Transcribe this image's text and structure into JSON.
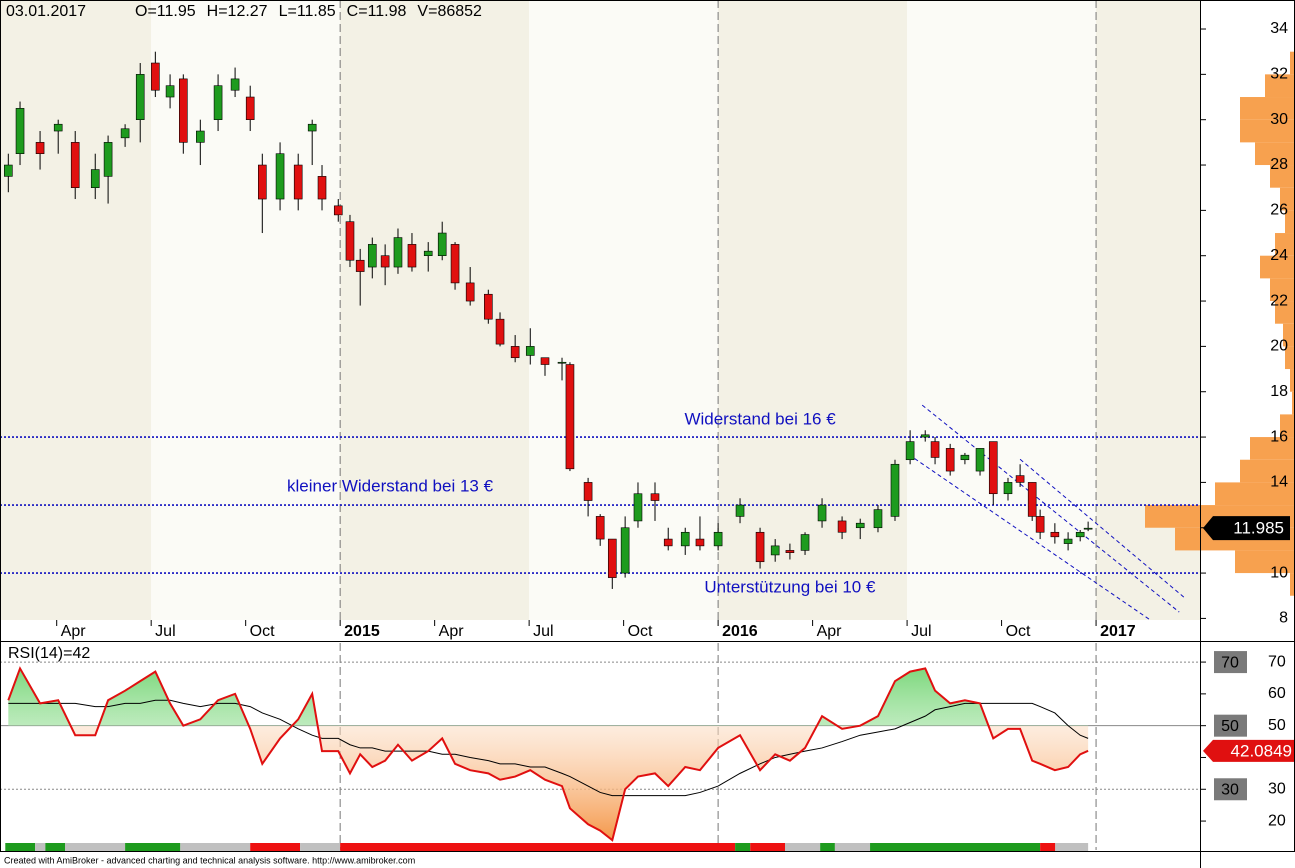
{
  "chart_data": {
    "type": "candlestick",
    "header": {
      "date": "03.01.2017",
      "ohlcv": [
        "O=11.95",
        "H=12.27",
        "L=11.85",
        "C=11.98",
        "V=86852"
      ]
    },
    "footer": "Created with AmiBroker - advanced charting and technical analysis software. http://www.amibroker.com",
    "xlim": [
      2014.1,
      2017.275
    ],
    "xticks": [
      {
        "value": 2014.25,
        "label": "Apr"
      },
      {
        "value": 2014.5,
        "label": "Jul"
      },
      {
        "value": 2014.75,
        "label": "Oct"
      },
      2015,
      {
        "value": 2015.25,
        "label": "Apr"
      },
      {
        "value": 2015.5,
        "label": "Jul"
      },
      {
        "value": 2015.75,
        "label": "Oct"
      },
      2016,
      {
        "value": 2016.25,
        "label": "Apr"
      },
      {
        "value": 2016.5,
        "label": "Jul"
      },
      {
        "value": 2016.75,
        "label": "Oct"
      },
      2017
    ],
    "ylim": [
      7.93,
      35.28
    ],
    "yticks": [
      8,
      10,
      12,
      14,
      16,
      18,
      20,
      22,
      24,
      26,
      28,
      30,
      32,
      34
    ],
    "up_color": "#1e9b1e",
    "down_color": "#e01010",
    "x": [
      2014.122,
      2014.153,
      2014.206,
      2014.254,
      2014.299,
      2014.352,
      2014.386,
      2014.431,
      2014.471,
      2014.511,
      2014.55,
      2014.585,
      2014.63,
      2014.677,
      2014.722,
      2014.762,
      2014.794,
      2014.841,
      2014.889,
      2014.926,
      2014.952,
      2014.995,
      2015.026,
      2015.053,
      2015.085,
      2015.119,
      2015.153,
      2015.19,
      2015.233,
      2015.27,
      2015.304,
      2015.344,
      2015.392,
      2015.423,
      2015.463,
      2015.503,
      2015.542,
      2015.587,
      2015.608,
      2015.656,
      2015.688,
      2015.72,
      2015.754,
      2015.788,
      2015.833,
      2015.868,
      2015.913,
      2015.952,
      2016.0,
      2016.058,
      2016.111,
      2016.151,
      2016.19,
      2016.23,
      2016.275,
      2016.328,
      2016.376,
      2016.423,
      2016.468,
      2016.508,
      2016.548,
      2016.574,
      2016.614,
      2016.653,
      2016.693,
      2016.728,
      2016.767,
      2016.799,
      2016.831,
      2016.852,
      2016.891,
      2016.926,
      2016.958,
      2016.979
    ],
    "open": [
      27.5,
      28.5,
      29,
      29.5,
      29,
      27,
      27.5,
      29.2,
      30,
      32.5,
      31,
      31.8,
      29,
      30,
      31.3,
      31,
      28,
      26.5,
      28,
      29.5,
      27.5,
      26.2,
      25.5,
      23.8,
      23.5,
      24,
      23.5,
      24.5,
      24,
      24,
      24.5,
      22.8,
      22.3,
      21.2,
      20,
      19.6,
      19.5,
      19.3,
      19.2,
      14,
      12.5,
      11.5,
      10,
      12.3,
      13.5,
      11.5,
      11.2,
      11.5,
      11.2,
      12.5,
      11.8,
      10.8,
      11,
      11,
      12.3,
      12.3,
      12,
      12,
      12.5,
      15,
      16,
      15.8,
      15.5,
      15,
      14.5,
      15.8,
      13.5,
      14.3,
      14,
      12.5,
      11.8,
      11.3,
      11.6,
      11.95
    ],
    "high": [
      28.5,
      30.8,
      29.5,
      30,
      29.5,
      28.5,
      29.3,
      29.8,
      32.5,
      33,
      32,
      32,
      30,
      32,
      32.3,
      31.5,
      28.5,
      29,
      28.5,
      30,
      28,
      26.5,
      25.8,
      24.3,
      24.8,
      24.5,
      25.2,
      25,
      24.6,
      25.5,
      24.6,
      23.5,
      22.5,
      21.5,
      20.5,
      20.8,
      19.5,
      19.5,
      19.3,
      14.2,
      12.6,
      11.5,
      12.5,
      14,
      14,
      12,
      12,
      12.5,
      12.2,
      13.3,
      12,
      11.5,
      11.3,
      11.8,
      13.3,
      12.5,
      12.4,
      13,
      15,
      16.3,
      16.3,
      16,
      15.7,
      15.3,
      15.5,
      15.8,
      14.2,
      14.8,
      14,
      12.8,
      12.2,
      11.8,
      11.9,
      12.27
    ],
    "low": [
      26.8,
      28,
      27.8,
      28.5,
      26.5,
      26.5,
      26.3,
      28.8,
      29,
      31,
      30.5,
      28.5,
      28,
      29.5,
      31,
      29.5,
      25,
      26,
      26,
      28,
      26,
      25.5,
      23.5,
      21.8,
      23,
      22.7,
      23.2,
      23.3,
      23.3,
      23.8,
      22.5,
      21.8,
      21,
      20,
      19.3,
      19.2,
      18.7,
      18.5,
      14.5,
      12.5,
      11.2,
      9.3,
      9.8,
      12,
      12.3,
      11,
      10.8,
      11,
      11,
      12.2,
      10.2,
      10.5,
      10.6,
      10.8,
      12,
      11.5,
      11.5,
      11.8,
      12.3,
      14.8,
      15.8,
      14.8,
      14.3,
      14.8,
      14.3,
      13,
      13.2,
      13.8,
      12.3,
      11.5,
      11.3,
      11,
      11.4,
      11.85
    ],
    "close": [
      28,
      30.5,
      28.5,
      29.8,
      27,
      27.8,
      29,
      29.6,
      32,
      31.3,
      31.5,
      29,
      29.5,
      31.5,
      31.8,
      30,
      26.5,
      28.5,
      26.5,
      29.8,
      26.5,
      25.8,
      23.8,
      23.3,
      24.5,
      23.5,
      24.8,
      23.5,
      24.2,
      25,
      22.8,
      22,
      21.2,
      20.1,
      19.5,
      20,
      19.2,
      19.3,
      14.6,
      13.2,
      11.5,
      9.8,
      12,
      13.5,
      13.2,
      11.2,
      11.8,
      11.2,
      11.8,
      13,
      10.5,
      11.2,
      10.9,
      11.7,
      13,
      11.8,
      12.2,
      12.8,
      14.8,
      15.8,
      16.1,
      15.1,
      14.5,
      15.2,
      15.5,
      13.5,
      14,
      14,
      12.5,
      11.8,
      11.6,
      11.5,
      11.8,
      11.98
    ],
    "last_price": 11.985,
    "hlines": [
      {
        "value": 16,
        "label": "Widerstand bei 16 €",
        "label_x": 2016.111,
        "label_y": 16.75
      },
      {
        "value": 13,
        "label": "kleiner Widerstand bei 13 €",
        "label_x": 2015.132,
        "label_y": 13.8
      },
      {
        "value": 10,
        "label": "Unterstützung bei 10 €",
        "label_x": 2016.19,
        "label_y": 9.35
      }
    ],
    "hline_color": "#1010c0",
    "channel": [
      {
        "x": [
          2016.54,
          2017.22
        ],
        "y": [
          17.41,
          8.28
        ]
      },
      {
        "x": [
          2016.799,
          2017.235
        ],
        "y": [
          15.02,
          8.9
        ]
      },
      {
        "x": [
          2016.52,
          2017.14
        ],
        "y": [
          15.05,
          7.97
        ]
      }
    ],
    "volume_profile": {
      "bins": [
        9,
        10,
        11,
        12,
        13,
        14,
        15,
        16,
        17,
        18,
        19,
        20,
        21,
        22,
        23,
        24,
        25,
        26,
        27,
        28,
        29,
        30,
        31,
        32,
        33
      ],
      "values": [
        5,
        60,
        120,
        150,
        80,
        55,
        45,
        15,
        3,
        5,
        10,
        12,
        20,
        25,
        35,
        20,
        10,
        15,
        25,
        40,
        55,
        55,
        30,
        5
      ],
      "xlim": [
        0,
        150
      ],
      "color": "#f7a14f"
    },
    "rsi": {
      "label": "RSI(14)=42",
      "ylim": [
        10.9,
        76
      ],
      "yticks": [
        20,
        30,
        40,
        50,
        60,
        70
      ],
      "levels": [
        70,
        50,
        30
      ],
      "last": 42.0849,
      "color": "#e01010",
      "values": [
        58,
        68,
        57,
        58,
        47,
        47,
        58,
        61,
        64,
        67,
        57,
        50,
        52,
        58,
        60,
        49,
        38,
        46,
        52,
        60,
        42,
        42,
        35,
        41,
        37,
        39,
        44,
        39,
        42,
        46,
        38,
        36,
        35,
        33,
        34,
        36,
        33,
        31,
        24,
        19,
        17,
        14,
        30,
        34,
        35,
        31,
        37,
        36,
        43,
        47,
        36,
        41,
        39,
        43,
        53,
        49,
        50,
        53,
        64,
        67,
        68,
        61,
        57,
        58,
        57,
        46,
        49,
        49,
        39,
        38,
        36,
        37,
        41,
        42.0849
      ],
      "ma": [
        57,
        57,
        57,
        57,
        57,
        56,
        56,
        57,
        57,
        58,
        58,
        57,
        56,
        57,
        57,
        56,
        54,
        52,
        49,
        47,
        46,
        46,
        44,
        43,
        43,
        42,
        42,
        42,
        42,
        41,
        41,
        40,
        39,
        38,
        38,
        37,
        37,
        35,
        34,
        31,
        29,
        28,
        28,
        28,
        28,
        28,
        28,
        29,
        31,
        35,
        38,
        40,
        41,
        42,
        43,
        45,
        47,
        48,
        49,
        51,
        53,
        55,
        56,
        57,
        57,
        57,
        57,
        57,
        57,
        56,
        54,
        50,
        47,
        46
      ]
    },
    "trend_bar": [
      {
        "start": 2014.114,
        "end": 2014.193,
        "color": "#1e9b1e"
      },
      {
        "start": 2014.193,
        "end": 2014.22,
        "color": "#c0c0c0"
      },
      {
        "start": 2014.22,
        "end": 2014.272,
        "color": "#1e9b1e"
      },
      {
        "start": 2014.272,
        "end": 2014.431,
        "color": "#c0c0c0"
      },
      {
        "start": 2014.431,
        "end": 2014.577,
        "color": "#1e9b1e"
      },
      {
        "start": 2014.577,
        "end": 2014.762,
        "color": "#c0c0c0"
      },
      {
        "start": 2014.762,
        "end": 2014.894,
        "color": "#ee1111"
      },
      {
        "start": 2014.894,
        "end": 2015.0,
        "color": "#c0c0c0"
      },
      {
        "start": 2015.0,
        "end": 2016.045,
        "color": "#ee1111"
      },
      {
        "start": 2016.045,
        "end": 2016.085,
        "color": "#1e9b1e"
      },
      {
        "start": 2016.085,
        "end": 2016.177,
        "color": "#ee1111"
      },
      {
        "start": 2016.177,
        "end": 2016.27,
        "color": "#c0c0c0"
      },
      {
        "start": 2016.27,
        "end": 2016.309,
        "color": "#1e9b1e"
      },
      {
        "start": 2016.309,
        "end": 2016.402,
        "color": "#c0c0c0"
      },
      {
        "start": 2016.402,
        "end": 2016.852,
        "color": "#1e9b1e"
      },
      {
        "start": 2016.852,
        "end": 2016.892,
        "color": "#ee1111"
      },
      {
        "start": 2016.892,
        "end": 2016.979,
        "color": "#c0c0c0"
      }
    ]
  }
}
